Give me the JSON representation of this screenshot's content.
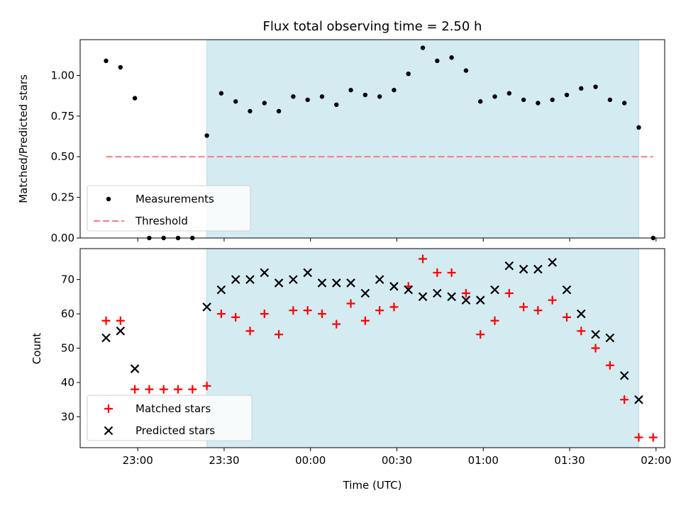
{
  "chart_data": [
    {
      "type": "scatter",
      "title": "Flux total observing time = 2.50 h",
      "ylabel": "Matched/Predicted stars",
      "xlabel": "",
      "xlim": [
        "22:40",
        "02:03"
      ],
      "ylim": [
        0,
        1.22
      ],
      "yticks": [
        "0.00",
        "0.25",
        "0.50",
        "0.75",
        "1.00"
      ],
      "grid": false,
      "legend_position": "lower-left",
      "shaded_region": {
        "from": "23:24",
        "to": "01:54",
        "color": "#d4ebf1"
      },
      "series": [
        {
          "name": "Measurements",
          "color": "#000000",
          "marker": "dot",
          "points": [
            [
              "22:49",
              1.09
            ],
            [
              "22:54",
              1.05
            ],
            [
              "22:59",
              0.86
            ],
            [
              "23:04",
              0.0
            ],
            [
              "23:09",
              0.0
            ],
            [
              "23:14",
              0.0
            ],
            [
              "23:19",
              0.0
            ],
            [
              "23:24",
              0.63
            ],
            [
              "23:29",
              0.89
            ],
            [
              "23:34",
              0.84
            ],
            [
              "23:39",
              0.78
            ],
            [
              "23:44",
              0.83
            ],
            [
              "23:49",
              0.78
            ],
            [
              "23:54",
              0.87
            ],
            [
              "23:59",
              0.85
            ],
            [
              "00:04",
              0.87
            ],
            [
              "00:09",
              0.82
            ],
            [
              "00:14",
              0.91
            ],
            [
              "00:19",
              0.88
            ],
            [
              "00:24",
              0.87
            ],
            [
              "00:29",
              0.91
            ],
            [
              "00:34",
              1.01
            ],
            [
              "00:39",
              1.17
            ],
            [
              "00:44",
              1.09
            ],
            [
              "00:49",
              1.11
            ],
            [
              "00:54",
              1.03
            ],
            [
              "00:59",
              0.84
            ],
            [
              "01:04",
              0.87
            ],
            [
              "01:09",
              0.89
            ],
            [
              "01:14",
              0.85
            ],
            [
              "01:19",
              0.83
            ],
            [
              "01:24",
              0.85
            ],
            [
              "01:29",
              0.88
            ],
            [
              "01:34",
              0.92
            ],
            [
              "01:39",
              0.93
            ],
            [
              "01:44",
              0.85
            ],
            [
              "01:49",
              0.83
            ],
            [
              "01:54",
              0.68
            ],
            [
              "01:59",
              0.0
            ]
          ]
        },
        {
          "name": "Threshold",
          "color": "#f08080",
          "style": "dashed-line",
          "points": [
            [
              "22:49",
              0.5
            ],
            [
              "01:59",
              0.5
            ]
          ]
        }
      ]
    },
    {
      "type": "scatter",
      "title": "",
      "ylabel": "Count",
      "xlabel": "Time (UTC)",
      "xlim": [
        "22:40",
        "02:03"
      ],
      "ylim": [
        21,
        79
      ],
      "yticks": [
        "30",
        "40",
        "50",
        "60",
        "70"
      ],
      "xticks": [
        "23:00",
        "23:30",
        "00:00",
        "00:30",
        "01:00",
        "01:30",
        "02:00"
      ],
      "grid": false,
      "legend_position": "lower-left",
      "shaded_region": {
        "from": "23:24",
        "to": "01:54",
        "color": "#d4ebf1"
      },
      "series": [
        {
          "name": "Matched stars",
          "color": "#ff0000",
          "marker": "plus",
          "points": [
            [
              "22:49",
              58
            ],
            [
              "22:54",
              58
            ],
            [
              "22:59",
              38
            ],
            [
              "23:04",
              38
            ],
            [
              "23:09",
              38
            ],
            [
              "23:14",
              38
            ],
            [
              "23:19",
              38
            ],
            [
              "23:24",
              39
            ],
            [
              "23:29",
              60
            ],
            [
              "23:34",
              59
            ],
            [
              "23:39",
              55
            ],
            [
              "23:44",
              60
            ],
            [
              "23:49",
              54
            ],
            [
              "23:54",
              61
            ],
            [
              "23:59",
              61
            ],
            [
              "00:04",
              60
            ],
            [
              "00:09",
              57
            ],
            [
              "00:14",
              63
            ],
            [
              "00:19",
              58
            ],
            [
              "00:24",
              61
            ],
            [
              "00:29",
              62
            ],
            [
              "00:34",
              68
            ],
            [
              "00:39",
              76
            ],
            [
              "00:44",
              72
            ],
            [
              "00:49",
              72
            ],
            [
              "00:54",
              66
            ],
            [
              "00:59",
              54
            ],
            [
              "01:04",
              58
            ],
            [
              "01:09",
              66
            ],
            [
              "01:14",
              62
            ],
            [
              "01:19",
              61
            ],
            [
              "01:24",
              64
            ],
            [
              "01:29",
              59
            ],
            [
              "01:34",
              55
            ],
            [
              "01:39",
              50
            ],
            [
              "01:44",
              45
            ],
            [
              "01:49",
              35
            ],
            [
              "01:54",
              24
            ],
            [
              "01:59",
              24
            ]
          ]
        },
        {
          "name": "Predicted stars",
          "color": "#000000",
          "marker": "cross",
          "points": [
            [
              "22:49",
              53
            ],
            [
              "22:54",
              55
            ],
            [
              "22:59",
              44
            ],
            [
              "23:24",
              62
            ],
            [
              "23:29",
              67
            ],
            [
              "23:34",
              70
            ],
            [
              "23:39",
              70
            ],
            [
              "23:44",
              72
            ],
            [
              "23:49",
              69
            ],
            [
              "23:54",
              70
            ],
            [
              "23:59",
              72
            ],
            [
              "00:04",
              69
            ],
            [
              "00:09",
              69
            ],
            [
              "00:14",
              69
            ],
            [
              "00:19",
              66
            ],
            [
              "00:24",
              70
            ],
            [
              "00:29",
              68
            ],
            [
              "00:34",
              67
            ],
            [
              "00:39",
              65
            ],
            [
              "00:44",
              66
            ],
            [
              "00:49",
              65
            ],
            [
              "00:54",
              64
            ],
            [
              "00:59",
              64
            ],
            [
              "01:04",
              67
            ],
            [
              "01:09",
              74
            ],
            [
              "01:14",
              73
            ],
            [
              "01:19",
              73
            ],
            [
              "01:24",
              75
            ],
            [
              "01:29",
              67
            ],
            [
              "01:34",
              60
            ],
            [
              "01:39",
              54
            ],
            [
              "01:44",
              53
            ],
            [
              "01:49",
              42
            ],
            [
              "01:54",
              35
            ]
          ]
        }
      ]
    }
  ]
}
